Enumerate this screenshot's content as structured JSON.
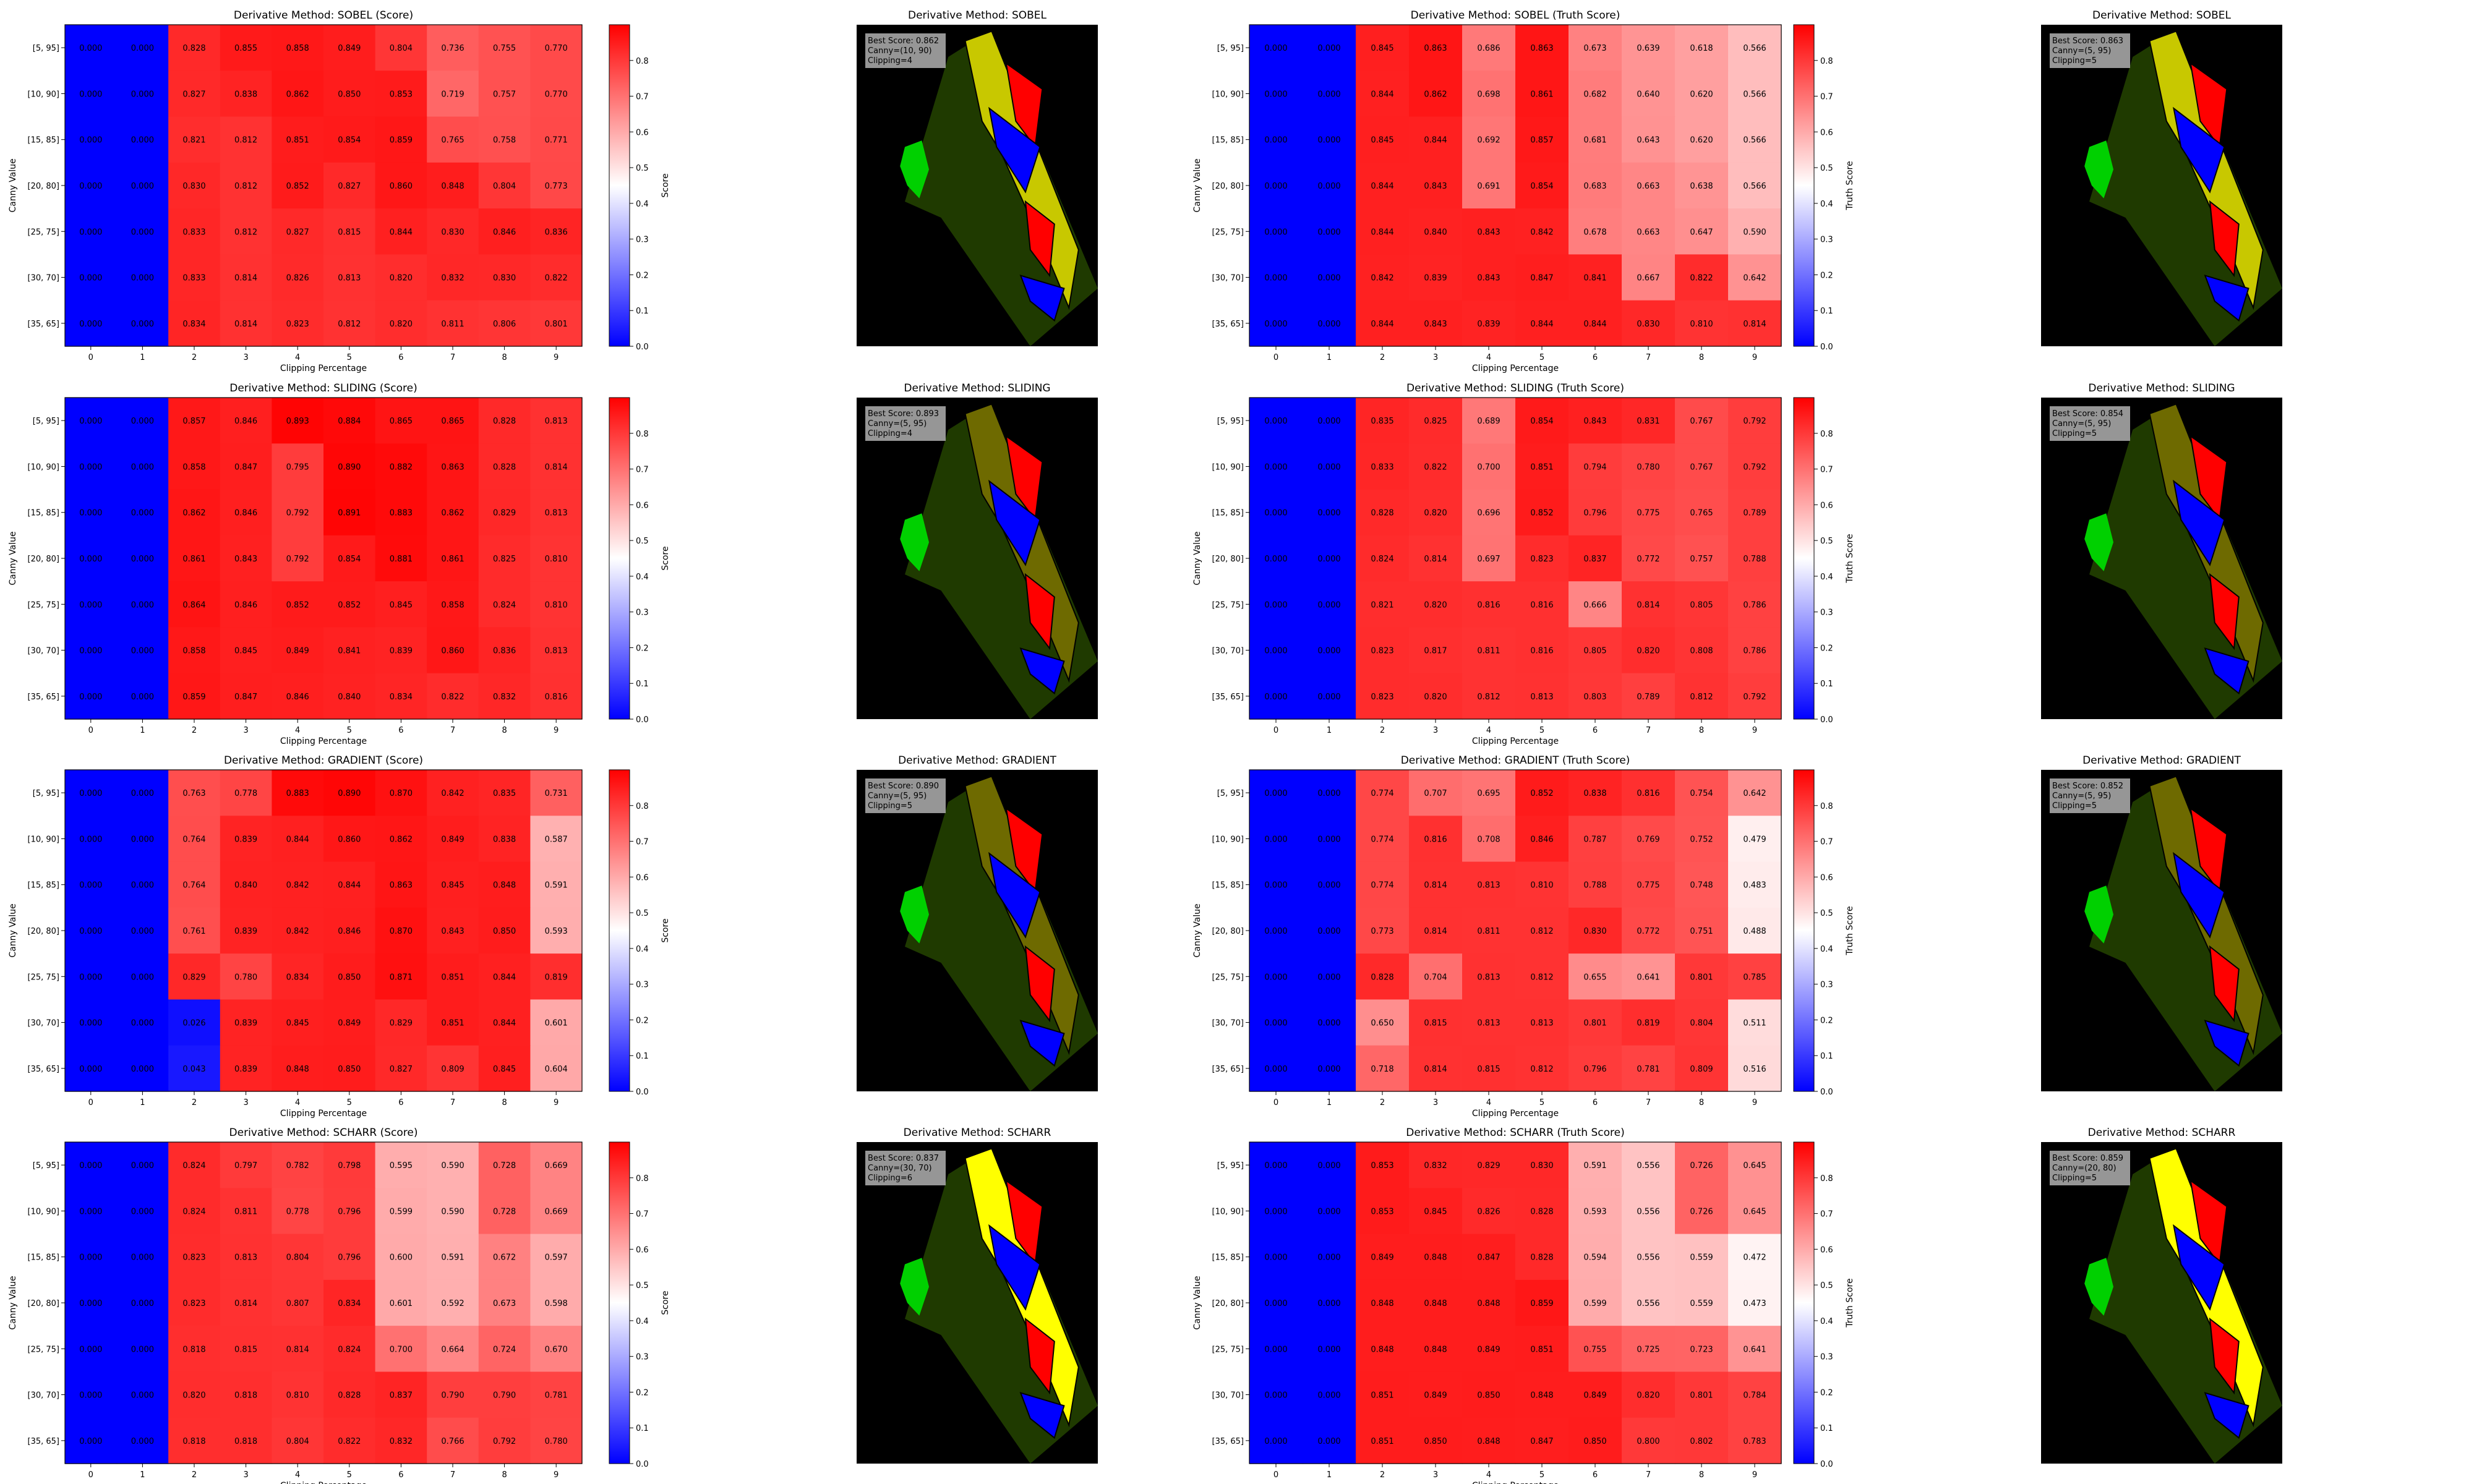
{
  "figure": {
    "x_tick_labels": [
      "0",
      "1",
      "2",
      "3",
      "4",
      "5",
      "6",
      "7",
      "8",
      "9"
    ],
    "y_tick_labels": [
      "[5, 95]",
      "[10, 90]",
      "[15, 85]",
      "[20, 80]",
      "[25, 75]",
      "[30, 70]",
      "[35, 65]"
    ],
    "xlabel": "Clipping Percentage",
    "ylabel": "Canny Value",
    "colorbar_ticks": [
      "0.0",
      "0.1",
      "0.2",
      "0.3",
      "0.4",
      "0.5",
      "0.6",
      "0.7",
      "0.8"
    ],
    "colormap": {
      "low": "#0000ff",
      "mid": "#ffffff",
      "high": "#ff0000",
      "vmin": 0.0,
      "vmax": 0.9
    },
    "region_colors": {
      "background": "#000000",
      "ribbon": "#1f3a00",
      "ribbon_bright": "#3a3a00",
      "yellow": "#c8c800",
      "yellow_bright": "#ffff00",
      "olive": "#6e6a00",
      "red": "#ff0000",
      "blue": "#0000ff",
      "green": "#00d000",
      "outline": "#000000"
    }
  },
  "rows": [
    {
      "method": "SOBEL",
      "score_title": "Derivative Method: SOBEL (Score)",
      "score_cbar": "Score",
      "score_values": [
        [
          "0.000",
          "0.000",
          "0.828",
          "0.855",
          "0.858",
          "0.849",
          "0.804",
          "0.736",
          "0.755",
          "0.770"
        ],
        [
          "0.000",
          "0.000",
          "0.827",
          "0.838",
          "0.862",
          "0.850",
          "0.853",
          "0.719",
          "0.757",
          "0.770"
        ],
        [
          "0.000",
          "0.000",
          "0.821",
          "0.812",
          "0.851",
          "0.854",
          "0.859",
          "0.765",
          "0.758",
          "0.771"
        ],
        [
          "0.000",
          "0.000",
          "0.830",
          "0.812",
          "0.852",
          "0.827",
          "0.860",
          "0.848",
          "0.804",
          "0.773"
        ],
        [
          "0.000",
          "0.000",
          "0.833",
          "0.812",
          "0.827",
          "0.815",
          "0.844",
          "0.830",
          "0.846",
          "0.836"
        ],
        [
          "0.000",
          "0.000",
          "0.833",
          "0.814",
          "0.826",
          "0.813",
          "0.820",
          "0.832",
          "0.830",
          "0.822"
        ],
        [
          "0.000",
          "0.000",
          "0.834",
          "0.814",
          "0.823",
          "0.812",
          "0.820",
          "0.811",
          "0.806",
          "0.801"
        ]
      ],
      "img1_title": "Derivative Method: SOBEL",
      "img1_box": [
        "Best Score: 0.862",
        "Canny=(10, 90)",
        "Clipping=4"
      ],
      "truth_title": "Derivative Method: SOBEL (Truth Score)",
      "truth_cbar": "Truth Score",
      "truth_values": [
        [
          "0.000",
          "0.000",
          "0.845",
          "0.863",
          "0.686",
          "0.863",
          "0.673",
          "0.639",
          "0.618",
          "0.566"
        ],
        [
          "0.000",
          "0.000",
          "0.844",
          "0.862",
          "0.698",
          "0.861",
          "0.682",
          "0.640",
          "0.620",
          "0.566"
        ],
        [
          "0.000",
          "0.000",
          "0.845",
          "0.844",
          "0.692",
          "0.857",
          "0.681",
          "0.643",
          "0.620",
          "0.566"
        ],
        [
          "0.000",
          "0.000",
          "0.844",
          "0.843",
          "0.691",
          "0.854",
          "0.683",
          "0.663",
          "0.638",
          "0.566"
        ],
        [
          "0.000",
          "0.000",
          "0.844",
          "0.840",
          "0.843",
          "0.842",
          "0.678",
          "0.663",
          "0.647",
          "0.590"
        ],
        [
          "0.000",
          "0.000",
          "0.842",
          "0.839",
          "0.843",
          "0.847",
          "0.841",
          "0.667",
          "0.822",
          "0.642"
        ],
        [
          "0.000",
          "0.000",
          "0.844",
          "0.843",
          "0.839",
          "0.844",
          "0.844",
          "0.830",
          "0.810",
          "0.814"
        ]
      ],
      "img2_title": "Derivative Method: SOBEL",
      "img2_box": [
        "Best Score: 0.863",
        "Canny=(5, 95)",
        "Clipping=5"
      ]
    },
    {
      "method": "SLIDING",
      "score_title": "Derivative Method: SLIDING (Score)",
      "score_cbar": "Score",
      "score_values": [
        [
          "0.000",
          "0.000",
          "0.857",
          "0.846",
          "0.893",
          "0.884",
          "0.865",
          "0.865",
          "0.828",
          "0.813"
        ],
        [
          "0.000",
          "0.000",
          "0.858",
          "0.847",
          "0.795",
          "0.890",
          "0.882",
          "0.863",
          "0.828",
          "0.814"
        ],
        [
          "0.000",
          "0.000",
          "0.862",
          "0.846",
          "0.792",
          "0.891",
          "0.883",
          "0.862",
          "0.829",
          "0.813"
        ],
        [
          "0.000",
          "0.000",
          "0.861",
          "0.843",
          "0.792",
          "0.854",
          "0.881",
          "0.861",
          "0.825",
          "0.810"
        ],
        [
          "0.000",
          "0.000",
          "0.864",
          "0.846",
          "0.852",
          "0.852",
          "0.845",
          "0.858",
          "0.824",
          "0.810"
        ],
        [
          "0.000",
          "0.000",
          "0.858",
          "0.845",
          "0.849",
          "0.841",
          "0.839",
          "0.860",
          "0.836",
          "0.813"
        ],
        [
          "0.000",
          "0.000",
          "0.859",
          "0.847",
          "0.846",
          "0.840",
          "0.834",
          "0.822",
          "0.832",
          "0.816"
        ]
      ],
      "img1_title": "Derivative Method: SLIDING",
      "img1_box": [
        "Best Score: 0.893",
        "Canny=(5, 95)",
        "Clipping=4"
      ],
      "truth_title": "Derivative Method: SLIDING (Truth Score)",
      "truth_cbar": "Truth Score",
      "truth_values": [
        [
          "0.000",
          "0.000",
          "0.835",
          "0.825",
          "0.689",
          "0.854",
          "0.843",
          "0.831",
          "0.767",
          "0.792"
        ],
        [
          "0.000",
          "0.000",
          "0.833",
          "0.822",
          "0.700",
          "0.851",
          "0.794",
          "0.780",
          "0.767",
          "0.792"
        ],
        [
          "0.000",
          "0.000",
          "0.828",
          "0.820",
          "0.696",
          "0.852",
          "0.796",
          "0.775",
          "0.765",
          "0.789"
        ],
        [
          "0.000",
          "0.000",
          "0.824",
          "0.814",
          "0.697",
          "0.823",
          "0.837",
          "0.772",
          "0.757",
          "0.788"
        ],
        [
          "0.000",
          "0.000",
          "0.821",
          "0.820",
          "0.816",
          "0.816",
          "0.666",
          "0.814",
          "0.805",
          "0.786"
        ],
        [
          "0.000",
          "0.000",
          "0.823",
          "0.817",
          "0.811",
          "0.816",
          "0.805",
          "0.820",
          "0.808",
          "0.786"
        ],
        [
          "0.000",
          "0.000",
          "0.823",
          "0.820",
          "0.812",
          "0.813",
          "0.803",
          "0.789",
          "0.812",
          "0.792"
        ]
      ],
      "img2_title": "Derivative Method: SLIDING",
      "img2_box": [
        "Best Score: 0.854",
        "Canny=(5, 95)",
        "Clipping=5"
      ]
    },
    {
      "method": "GRADIENT",
      "score_title": "Derivative Method: GRADIENT (Score)",
      "score_cbar": "Score",
      "score_values": [
        [
          "0.000",
          "0.000",
          "0.763",
          "0.778",
          "0.883",
          "0.890",
          "0.870",
          "0.842",
          "0.835",
          "0.731"
        ],
        [
          "0.000",
          "0.000",
          "0.764",
          "0.839",
          "0.844",
          "0.860",
          "0.862",
          "0.849",
          "0.838",
          "0.587"
        ],
        [
          "0.000",
          "0.000",
          "0.764",
          "0.840",
          "0.842",
          "0.844",
          "0.863",
          "0.845",
          "0.848",
          "0.591"
        ],
        [
          "0.000",
          "0.000",
          "0.761",
          "0.839",
          "0.842",
          "0.846",
          "0.870",
          "0.843",
          "0.850",
          "0.593"
        ],
        [
          "0.000",
          "0.000",
          "0.829",
          "0.780",
          "0.834",
          "0.850",
          "0.871",
          "0.851",
          "0.844",
          "0.819"
        ],
        [
          "0.000",
          "0.000",
          "0.026",
          "0.839",
          "0.845",
          "0.849",
          "0.829",
          "0.851",
          "0.844",
          "0.601"
        ],
        [
          "0.000",
          "0.000",
          "0.043",
          "0.839",
          "0.848",
          "0.850",
          "0.827",
          "0.809",
          "0.845",
          "0.604"
        ]
      ],
      "img1_title": "Derivative Method: GRADIENT",
      "img1_box": [
        "Best Score: 0.890",
        "Canny=(5, 95)",
        "Clipping=5"
      ],
      "truth_title": "Derivative Method: GRADIENT (Truth Score)",
      "truth_cbar": "Truth Score",
      "truth_values": [
        [
          "0.000",
          "0.000",
          "0.774",
          "0.707",
          "0.695",
          "0.852",
          "0.838",
          "0.816",
          "0.754",
          "0.642"
        ],
        [
          "0.000",
          "0.000",
          "0.774",
          "0.816",
          "0.708",
          "0.846",
          "0.787",
          "0.769",
          "0.752",
          "0.479"
        ],
        [
          "0.000",
          "0.000",
          "0.774",
          "0.814",
          "0.813",
          "0.810",
          "0.788",
          "0.775",
          "0.748",
          "0.483"
        ],
        [
          "0.000",
          "0.000",
          "0.773",
          "0.814",
          "0.811",
          "0.812",
          "0.830",
          "0.772",
          "0.751",
          "0.488"
        ],
        [
          "0.000",
          "0.000",
          "0.828",
          "0.704",
          "0.813",
          "0.812",
          "0.655",
          "0.641",
          "0.801",
          "0.785"
        ],
        [
          "0.000",
          "0.000",
          "0.650",
          "0.815",
          "0.813",
          "0.813",
          "0.801",
          "0.819",
          "0.804",
          "0.511"
        ],
        [
          "0.000",
          "0.000",
          "0.718",
          "0.814",
          "0.815",
          "0.812",
          "0.796",
          "0.781",
          "0.809",
          "0.516"
        ]
      ],
      "img2_title": "Derivative Method: GRADIENT",
      "img2_box": [
        "Best Score: 0.852",
        "Canny=(5, 95)",
        "Clipping=5"
      ]
    },
    {
      "method": "SCHARR",
      "score_title": "Derivative Method: SCHARR (Score)",
      "score_cbar": "Score",
      "score_values": [
        [
          "0.000",
          "0.000",
          "0.824",
          "0.797",
          "0.782",
          "0.798",
          "0.595",
          "0.590",
          "0.728",
          "0.669"
        ],
        [
          "0.000",
          "0.000",
          "0.824",
          "0.811",
          "0.778",
          "0.796",
          "0.599",
          "0.590",
          "0.728",
          "0.669"
        ],
        [
          "0.000",
          "0.000",
          "0.823",
          "0.813",
          "0.804",
          "0.796",
          "0.600",
          "0.591",
          "0.672",
          "0.597"
        ],
        [
          "0.000",
          "0.000",
          "0.823",
          "0.814",
          "0.807",
          "0.834",
          "0.601",
          "0.592",
          "0.673",
          "0.598"
        ],
        [
          "0.000",
          "0.000",
          "0.818",
          "0.815",
          "0.814",
          "0.824",
          "0.700",
          "0.664",
          "0.724",
          "0.670"
        ],
        [
          "0.000",
          "0.000",
          "0.820",
          "0.818",
          "0.810",
          "0.828",
          "0.837",
          "0.790",
          "0.790",
          "0.781"
        ],
        [
          "0.000",
          "0.000",
          "0.818",
          "0.818",
          "0.804",
          "0.822",
          "0.832",
          "0.766",
          "0.792",
          "0.780"
        ]
      ],
      "img1_title": "Derivative Method: SCHARR",
      "img1_box": [
        "Best Score: 0.837",
        "Canny=(30, 70)",
        "Clipping=6"
      ],
      "truth_title": "Derivative Method: SCHARR (Truth Score)",
      "truth_cbar": "Truth Score",
      "truth_values": [
        [
          "0.000",
          "0.000",
          "0.853",
          "0.832",
          "0.829",
          "0.830",
          "0.591",
          "0.556",
          "0.726",
          "0.645"
        ],
        [
          "0.000",
          "0.000",
          "0.853",
          "0.845",
          "0.826",
          "0.828",
          "0.593",
          "0.556",
          "0.726",
          "0.645"
        ],
        [
          "0.000",
          "0.000",
          "0.849",
          "0.848",
          "0.847",
          "0.828",
          "0.594",
          "0.556",
          "0.559",
          "0.472"
        ],
        [
          "0.000",
          "0.000",
          "0.848",
          "0.848",
          "0.848",
          "0.859",
          "0.599",
          "0.556",
          "0.559",
          "0.473"
        ],
        [
          "0.000",
          "0.000",
          "0.848",
          "0.848",
          "0.849",
          "0.851",
          "0.755",
          "0.725",
          "0.723",
          "0.641"
        ],
        [
          "0.000",
          "0.000",
          "0.851",
          "0.849",
          "0.850",
          "0.848",
          "0.849",
          "0.820",
          "0.801",
          "0.784"
        ],
        [
          "0.000",
          "0.000",
          "0.851",
          "0.850",
          "0.848",
          "0.847",
          "0.850",
          "0.800",
          "0.802",
          "0.783"
        ]
      ],
      "img2_title": "Derivative Method: SCHARR",
      "img2_box": [
        "Best Score: 0.859",
        "Canny=(20, 80)",
        "Clipping=5"
      ]
    }
  ],
  "chart_data": [
    {
      "type": "heatmap",
      "title": "Derivative Method: SOBEL (Score)",
      "xlabel": "Clipping Percentage",
      "ylabel": "Canny Value",
      "colorbar_label": "Score"
    },
    {
      "type": "heatmap",
      "title": "Derivative Method: SOBEL (Truth Score)",
      "xlabel": "Clipping Percentage",
      "ylabel": "Canny Value",
      "colorbar_label": "Truth Score"
    },
    {
      "type": "heatmap",
      "title": "Derivative Method: SLIDING (Score)",
      "xlabel": "Clipping Percentage",
      "ylabel": "Canny Value",
      "colorbar_label": "Score"
    },
    {
      "type": "heatmap",
      "title": "Derivative Method: SLIDING (Truth Score)",
      "xlabel": "Clipping Percentage",
      "ylabel": "Canny Value",
      "colorbar_label": "Truth Score"
    },
    {
      "type": "heatmap",
      "title": "Derivative Method: GRADIENT (Score)",
      "xlabel": "Clipping Percentage",
      "ylabel": "Canny Value",
      "colorbar_label": "Score"
    },
    {
      "type": "heatmap",
      "title": "Derivative Method: GRADIENT (Truth Score)",
      "xlabel": "Clipping Percentage",
      "ylabel": "Canny Value",
      "colorbar_label": "Truth Score"
    },
    {
      "type": "heatmap",
      "title": "Derivative Method: SCHARR (Score)",
      "xlabel": "Clipping Percentage",
      "ylabel": "Canny Value",
      "colorbar_label": "Score"
    },
    {
      "type": "heatmap",
      "title": "Derivative Method: SCHARR (Truth Score)",
      "xlabel": "Clipping Percentage",
      "ylabel": "Canny Value",
      "colorbar_label": "Truth Score"
    }
  ]
}
